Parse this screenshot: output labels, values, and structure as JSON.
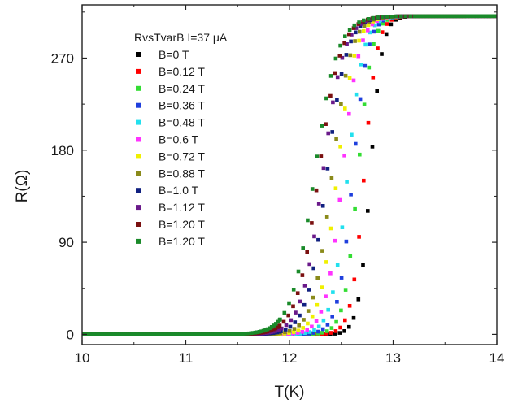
{
  "chart_data": {
    "type": "scatter",
    "title": "RvsTvarB I=37 μA",
    "xlabel": "T(K)",
    "ylabel": "R(Ω)",
    "xlim": [
      10,
      14
    ],
    "ylim": [
      -10,
      322
    ],
    "x_ticks": [
      10,
      11,
      12,
      13,
      14
    ],
    "x_tick_labels": [
      "10",
      "11",
      "12",
      "13",
      "14"
    ],
    "y_ticks": [
      0,
      90,
      180,
      270
    ],
    "y_tick_labels": [
      "0",
      "90",
      "180",
      "270"
    ],
    "grid": false,
    "legend_position": "top-left",
    "r_normal": 311,
    "series": [
      {
        "name": "B=0 T",
        "color": "#000000",
        "tc": 12.78,
        "width": 0.055
      },
      {
        "name": "B=0.12 T",
        "color": "#ff0000",
        "tc": 12.72,
        "width": 0.06
      },
      {
        "name": "B=0.24 T",
        "color": "#33dd33",
        "tc": 12.66,
        "width": 0.065
      },
      {
        "name": "B=0.36 T",
        "color": "#1f3fdd",
        "tc": 12.61,
        "width": 0.07
      },
      {
        "name": "B=0.48 T",
        "color": "#22e0ee",
        "tc": 12.56,
        "width": 0.075
      },
      {
        "name": "B=0.6 T",
        "color": "#ff33ff",
        "tc": 12.51,
        "width": 0.08
      },
      {
        "name": "B=0.72 T",
        "color": "#f0f000",
        "tc": 12.46,
        "width": 0.085
      },
      {
        "name": "B=0.88 T",
        "color": "#8a8a1a",
        "tc": 12.41,
        "width": 0.09
      },
      {
        "name": "B=1.0 T",
        "color": "#102080",
        "tc": 12.36,
        "width": 0.095
      },
      {
        "name": "B=1.12 T",
        "color": "#6a1a8a",
        "tc": 12.32,
        "width": 0.1
      },
      {
        "name": "B=1.20 T",
        "color": "#7a1010",
        "tc": 12.28,
        "width": 0.105
      },
      {
        "name": "B=1.20 T",
        "color": "#1a8a2a",
        "tc": 12.24,
        "width": 0.11
      }
    ]
  }
}
